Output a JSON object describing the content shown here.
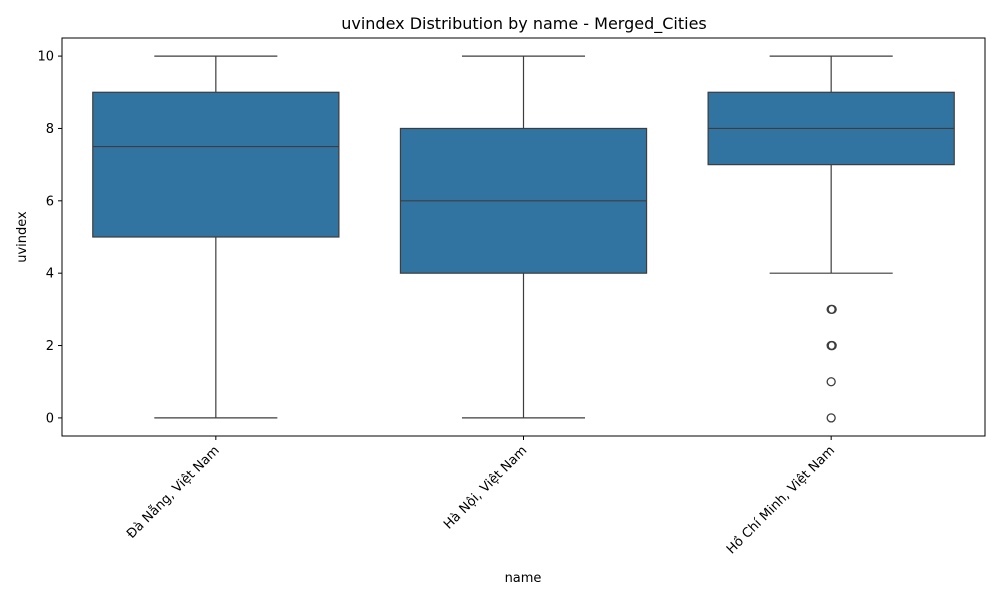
{
  "chart_data": {
    "type": "box",
    "title": "uvindex Distribution by name - Merged_Cities",
    "xlabel": "name",
    "ylabel": "uvindex",
    "ylim": [
      -0.5,
      10.5
    ],
    "yticks": [
      0,
      2,
      4,
      6,
      8,
      10
    ],
    "grid": false,
    "box_color": "#3274a1",
    "line_color": "#3d3d3d",
    "categories": [
      "Đà Nẵng, Việt Nam",
      "Hà Nội, Việt Nam",
      "Hồ Chí Minh, Việt Nam"
    ],
    "boxes": [
      {
        "whisker_low": 0,
        "q1": 5,
        "median": 7.5,
        "q3": 9,
        "whisker_high": 10,
        "outliers": []
      },
      {
        "whisker_low": 0,
        "q1": 4,
        "median": 6,
        "q3": 8,
        "whisker_high": 10,
        "outliers": []
      },
      {
        "whisker_low": 4,
        "q1": 7,
        "median": 8,
        "q3": 9,
        "whisker_high": 10,
        "outliers": [
          3,
          2,
          1,
          0
        ]
      }
    ]
  }
}
